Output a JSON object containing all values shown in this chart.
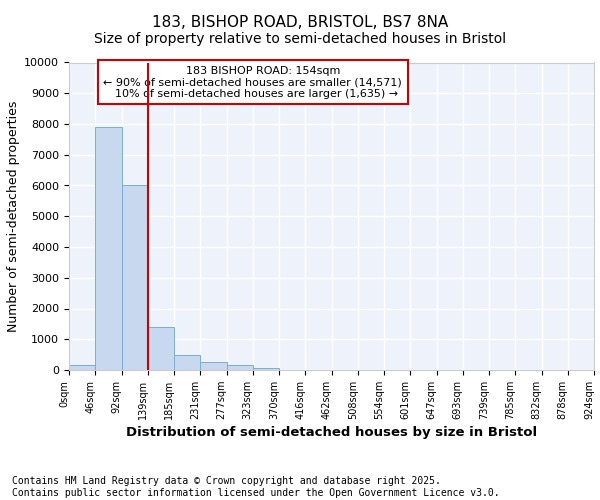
{
  "title": "183, BISHOP ROAD, BRISTOL, BS7 8NA",
  "subtitle": "Size of property relative to semi-detached houses in Bristol",
  "xlabel": "Distribution of semi-detached houses by size in Bristol",
  "ylabel": "Number of semi-detached properties",
  "footer_line1": "Contains HM Land Registry data © Crown copyright and database right 2025.",
  "footer_line2": "Contains public sector information licensed under the Open Government Licence v3.0.",
  "bin_labels": [
    "0sqm",
    "46sqm",
    "92sqm",
    "139sqm",
    "185sqm",
    "231sqm",
    "277sqm",
    "323sqm",
    "370sqm",
    "416sqm",
    "462sqm",
    "508sqm",
    "554sqm",
    "601sqm",
    "647sqm",
    "693sqm",
    "739sqm",
    "785sqm",
    "832sqm",
    "878sqm",
    "924sqm"
  ],
  "bar_values": [
    150,
    7900,
    6000,
    1400,
    500,
    250,
    150,
    70,
    0,
    0,
    0,
    0,
    0,
    0,
    0,
    0,
    0,
    0,
    0,
    0
  ],
  "bar_color": "#c8d8ee",
  "bar_edge_color": "#7aaed4",
  "vline_color": "#cc0000",
  "annotation_box_color": "#cc0000",
  "property_label": "183 BISHOP ROAD: 154sqm",
  "pct_smaller": 90,
  "num_smaller": "14,571",
  "pct_larger": 10,
  "num_larger": "1,635",
  "ylim": [
    0,
    10000
  ],
  "yticks": [
    0,
    1000,
    2000,
    3000,
    4000,
    5000,
    6000,
    7000,
    8000,
    9000,
    10000
  ],
  "background_color": "#eef2fa",
  "grid_color": "#ffffff",
  "title_fontsize": 11,
  "subtitle_fontsize": 10,
  "axis_label_fontsize": 9,
  "tick_fontsize": 8,
  "footer_fontsize": 7,
  "annot_fontsize": 8
}
